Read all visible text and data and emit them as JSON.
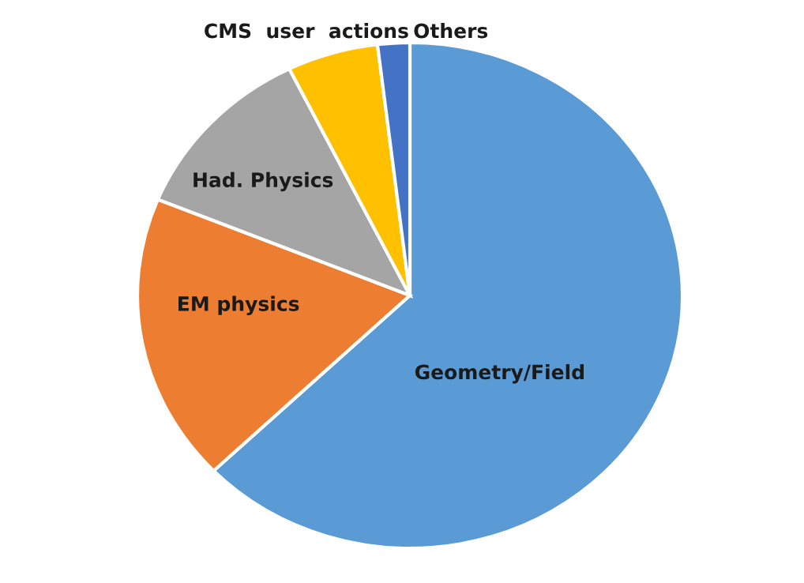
{
  "chart_data": {
    "type": "pie",
    "categories": [
      "Geometry/Field",
      "EM physics",
      "Had. Physics",
      "CMS  user  actions",
      "Others"
    ],
    "values": [
      62.8,
      18.4,
      11.5,
      5.4,
      1.9
    ],
    "colors": [
      "#5b9bd5",
      "#ed7d31",
      "#a5a5a5",
      "#ffc000",
      "#4472c4"
    ],
    "legend": false
  }
}
